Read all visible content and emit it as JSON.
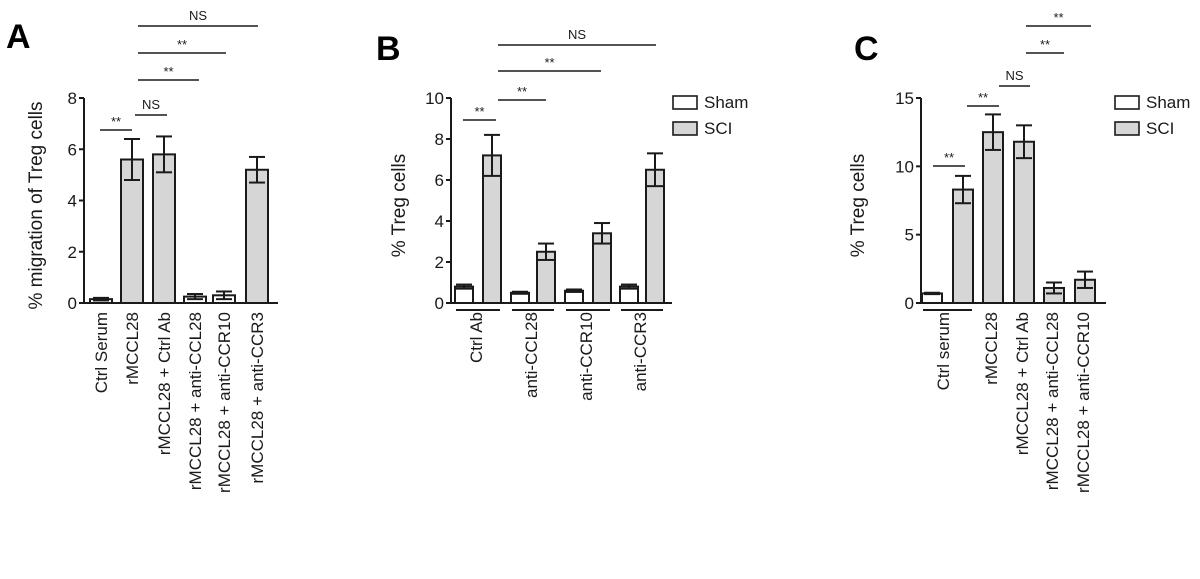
{
  "colors": {
    "sham_fill": "#ffffff",
    "sci_fill": "#d6d6d6",
    "stroke": "#1a1a1a"
  },
  "legend": {
    "items": [
      {
        "label": "Sham",
        "color": "#ffffff"
      },
      {
        "label": "SCI",
        "color": "#d6d6d6"
      }
    ]
  },
  "chart_data": [
    {
      "panel": "A",
      "type": "bar",
      "title": "",
      "xlabel": "",
      "ylabel": "% migration of Treg cells",
      "ylim": [
        0,
        8
      ],
      "yticks": [
        0,
        2,
        4,
        6,
        8
      ],
      "grid": false,
      "legend": null,
      "categories": [
        "Ctrl Serum",
        "rMCCL28",
        "rMCCL28 + Ctrl Ab",
        "rMCCL28 + anti-CCL28",
        "rMCCL28 + anti-CCR10",
        "rMCCL28 + anti-CCR3"
      ],
      "values": [
        0.15,
        5.6,
        5.8,
        0.25,
        0.3,
        5.2
      ],
      "errors": [
        0.05,
        0.8,
        0.7,
        0.1,
        0.15,
        0.5
      ],
      "fills": [
        "sham",
        "sci",
        "sci",
        "sham",
        "sham",
        "sci"
      ],
      "annotations": [
        {
          "from": 0,
          "to": 1,
          "label": "**",
          "y": 6.8
        },
        {
          "from": 1,
          "to": 2,
          "label": "NS",
          "y": 7.4
        },
        {
          "from": 1,
          "to": 3,
          "label": "**",
          "y": 8.9
        },
        {
          "from": 1,
          "to": 4,
          "label": "**",
          "y": 9.9
        },
        {
          "from": 1,
          "to": 5,
          "label": "NS",
          "y": 10.9
        }
      ]
    },
    {
      "panel": "B",
      "type": "bar",
      "title": "",
      "xlabel": "",
      "ylabel": "% Treg cells",
      "ylim": [
        0,
        10
      ],
      "yticks": [
        0,
        2,
        4,
        6,
        8,
        10
      ],
      "grid": false,
      "legend": {
        "position": "upper right",
        "entries": [
          "Sham",
          "SCI"
        ]
      },
      "categories": [
        "Ctrl Ab",
        "anti-CCL28",
        "anti-CCR10",
        "anti-CCR3"
      ],
      "series": [
        {
          "name": "Sham",
          "values": [
            0.8,
            0.5,
            0.6,
            0.8
          ],
          "errors": [
            0.1,
            0.05,
            0.06,
            0.1
          ]
        },
        {
          "name": "SCI",
          "values": [
            7.2,
            2.5,
            3.4,
            6.5
          ],
          "errors": [
            1.0,
            0.4,
            0.5,
            0.8
          ]
        }
      ],
      "annotations": [
        {
          "from": "Ctrl Ab Sham",
          "to": "Ctrl Ab SCI",
          "label": "**",
          "y": 8.95
        },
        {
          "from": "Ctrl Ab SCI",
          "to": "anti-CCL28 SCI",
          "label": "**",
          "y": 9.95
        },
        {
          "from": "Ctrl Ab SCI",
          "to": "anti-CCR10 SCI",
          "label": "**",
          "y": 11.35
        },
        {
          "from": "Ctrl Ab SCI",
          "to": "anti-CCR3 SCI",
          "label": "NS",
          "y": 12.65
        }
      ]
    },
    {
      "panel": "C",
      "type": "bar",
      "title": "",
      "xlabel": "",
      "ylabel": "% Treg cells",
      "ylim": [
        0,
        15
      ],
      "yticks": [
        0,
        5,
        10,
        15
      ],
      "grid": false,
      "legend": {
        "position": "upper right",
        "entries": [
          "Sham",
          "SCI"
        ]
      },
      "categories": [
        "Ctrl serum",
        "rMCCL28",
        "rMCCL28 + Ctrl Ab",
        "rMCCL28 + anti-CCL28",
        "rMCCL28 + anti-CCR10"
      ],
      "bars": [
        {
          "group": "Ctrl serum",
          "series": "Sham",
          "value": 0.7,
          "error": 0.05
        },
        {
          "group": "Ctrl serum",
          "series": "SCI",
          "value": 8.3,
          "error": 1.0
        },
        {
          "group": "rMCCL28",
          "series": "SCI",
          "value": 12.5,
          "error": 1.3
        },
        {
          "group": "rMCCL28 + Ctrl Ab",
          "series": "SCI",
          "value": 11.8,
          "error": 1.2
        },
        {
          "group": "rMCCL28 + anti-CCL28",
          "series": "SCI",
          "value": 1.1,
          "error": 0.4
        },
        {
          "group": "rMCCL28 + anti-CCR10",
          "series": "SCI",
          "value": 1.7,
          "error": 0.6
        }
      ],
      "annotations": [
        {
          "from": 0,
          "to": 1,
          "label": "**",
          "y": 10.0
        },
        {
          "from": 1,
          "to": 2,
          "label": "**",
          "y": 14.5
        },
        {
          "from": 2,
          "to": 3,
          "label": "NS",
          "y": 16.0
        },
        {
          "from": 3,
          "to": 4,
          "label": "**",
          "y": 18.3
        },
        {
          "from": 3,
          "to": 5,
          "label": "**",
          "y": 20.3
        }
      ]
    }
  ]
}
